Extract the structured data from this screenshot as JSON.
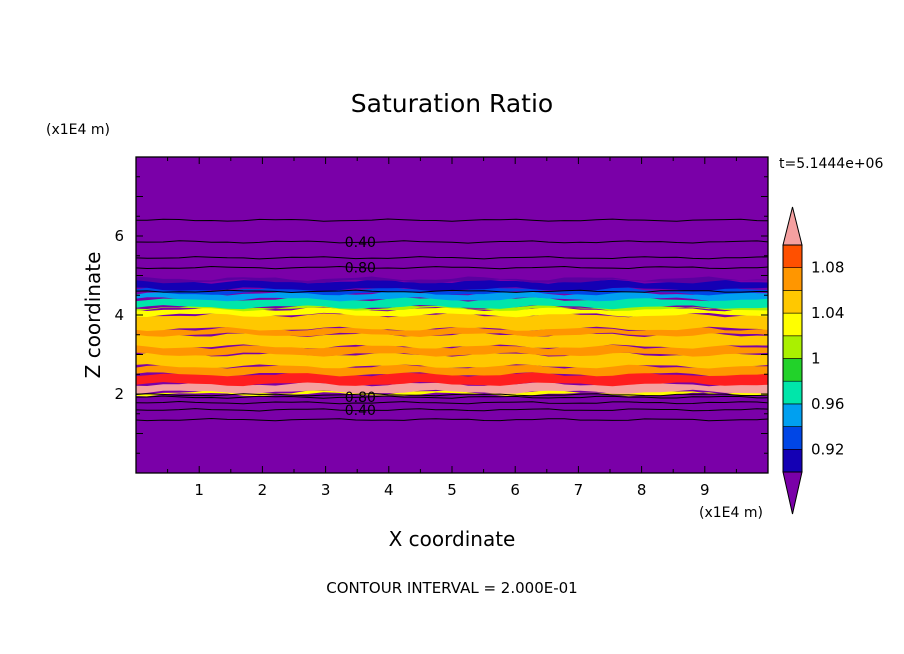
{
  "chart_data": {
    "type": "heatmap",
    "title": "Saturation Ratio",
    "xlabel": "X coordinate",
    "ylabel": "Z coordinate",
    "x_units": "(x1E4 m)",
    "y_units": "(x1E4 m)",
    "xlim": [
      0,
      10
    ],
    "ylim": [
      0,
      8
    ],
    "x_ticks": [
      1,
      2,
      3,
      4,
      5,
      6,
      7,
      8,
      9
    ],
    "y_ticks": [
      2,
      4,
      6
    ],
    "time_label": "t=5.1444e+06",
    "footer": "CONTOUR INTERVAL = 2.000E-01",
    "colorbar": {
      "colors": [
        "#5a00a0",
        "#1400b4",
        "#0046e6",
        "#00a0f0",
        "#00e6aa",
        "#22d22a",
        "#aaf000",
        "#ffff00",
        "#ffc800",
        "#ff9600",
        "#ff5000",
        "#ff1e1e",
        "#f5a0a0"
      ],
      "boundaries": [
        0.9,
        0.92,
        0.94,
        0.96,
        0.98,
        1.0,
        1.02,
        1.04,
        1.06,
        1.08,
        1.1
      ],
      "labels": [
        {
          "text": "0.92",
          "value": 0.92
        },
        {
          "text": "0.96",
          "value": 0.96
        },
        {
          "text": "1",
          "value": 1.0
        },
        {
          "text": "1.04",
          "value": 1.04
        },
        {
          "text": "1.08",
          "value": 1.08
        }
      ],
      "below_color": "#7a00a8",
      "above_color": "#f5a0a0"
    },
    "background_color": "#7a00a8",
    "bands": [
      {
        "z0": 1.99,
        "z1": 2.05,
        "color": "#ffff00"
      },
      {
        "z0": 2.05,
        "z1": 2.25,
        "color": "#f5a0a0"
      },
      {
        "z0": 2.25,
        "z1": 2.5,
        "color": "#ff1e1e"
      },
      {
        "z0": 2.5,
        "z1": 2.7,
        "color": "#ff9600"
      },
      {
        "z0": 2.7,
        "z1": 3.0,
        "color": "#ffc800"
      },
      {
        "z0": 3.0,
        "z1": 3.2,
        "color": "#ff9600"
      },
      {
        "z0": 3.2,
        "z1": 3.5,
        "color": "#ffc800"
      },
      {
        "z0": 3.5,
        "z1": 3.65,
        "color": "#ff9600"
      },
      {
        "z0": 3.65,
        "z1": 4.0,
        "color": "#ffc800"
      },
      {
        "z0": 4.0,
        "z1": 4.15,
        "color": "#ffff00"
      },
      {
        "z0": 4.15,
        "z1": 4.2,
        "color": "#aaf000"
      },
      {
        "z0": 4.2,
        "z1": 4.4,
        "color": "#00e6aa"
      },
      {
        "z0": 4.4,
        "z1": 4.55,
        "color": "#00a0f0"
      },
      {
        "z0": 4.55,
        "z1": 4.65,
        "color": "#0046e6"
      },
      {
        "z0": 4.65,
        "z1": 4.85,
        "color": "#1400b4"
      },
      {
        "z0": 4.85,
        "z1": 4.92,
        "color": "#5a00a0"
      }
    ],
    "contours": [
      {
        "z": 1.35,
        "label": ""
      },
      {
        "z": 1.6,
        "label": "0.40"
      },
      {
        "z": 1.78,
        "label": ""
      },
      {
        "z": 1.92,
        "label": "0.80"
      },
      {
        "z": 1.98,
        "label": ""
      },
      {
        "z": 4.6,
        "label": ""
      },
      {
        "z": 5.2,
        "label": "0.80"
      },
      {
        "z": 5.45,
        "label": ""
      },
      {
        "z": 5.85,
        "label": "0.40"
      },
      {
        "z": 6.4,
        "label": ""
      }
    ]
  }
}
